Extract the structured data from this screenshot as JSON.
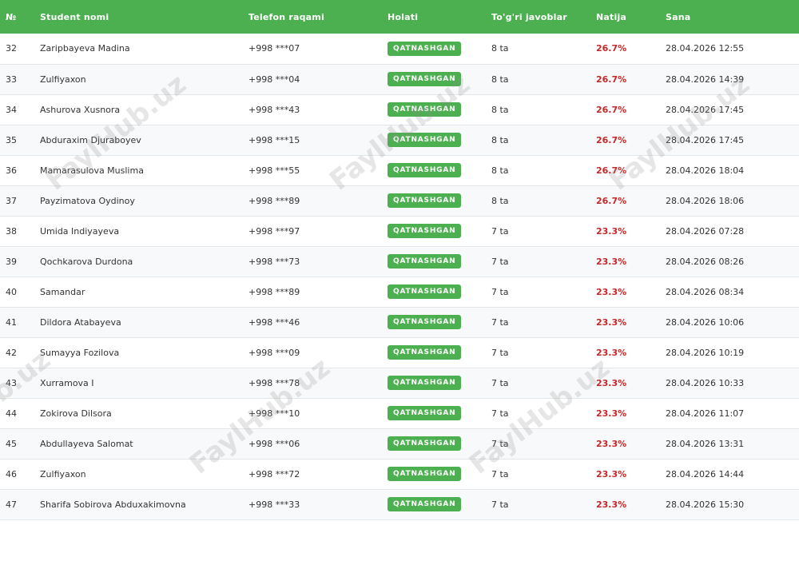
{
  "watermark_text": "FaylHub.uz",
  "headers": {
    "num": "№",
    "name": "Student nomi",
    "phone": "Telefon raqami",
    "status": "Holati",
    "correct": "To'g'ri javoblar",
    "result": "Natija",
    "date": "Sana"
  },
  "rows": [
    {
      "num": "32",
      "name": "Zaripbayeva Madina",
      "phone": "+998 ***07",
      "status": "QATNASHGAN",
      "correct": "8 ta",
      "result": "26.7%",
      "date": "28.04.2026 12:55"
    },
    {
      "num": "33",
      "name": "Zulfiyaxon",
      "phone": "+998 ***04",
      "status": "QATNASHGAN",
      "correct": "8 ta",
      "result": "26.7%",
      "date": "28.04.2026 14:39"
    },
    {
      "num": "34",
      "name": "Ashurova Xusnora",
      "phone": "+998 ***43",
      "status": "QATNASHGAN",
      "correct": "8 ta",
      "result": "26.7%",
      "date": "28.04.2026 17:45"
    },
    {
      "num": "35",
      "name": "Abduraxim Djuraboyev",
      "phone": "+998 ***15",
      "status": "QATNASHGAN",
      "correct": "8 ta",
      "result": "26.7%",
      "date": "28.04.2026 17:45"
    },
    {
      "num": "36",
      "name": "Mamarasulova Muslima",
      "phone": "+998 ***55",
      "status": "QATNASHGAN",
      "correct": "8 ta",
      "result": "26.7%",
      "date": "28.04.2026 18:04"
    },
    {
      "num": "37",
      "name": "Payzimatova Oydinoy",
      "phone": "+998 ***89",
      "status": "QATNASHGAN",
      "correct": "8 ta",
      "result": "26.7%",
      "date": "28.04.2026 18:06"
    },
    {
      "num": "38",
      "name": "Umida Indiyayeva",
      "phone": "+998 ***97",
      "status": "QATNASHGAN",
      "correct": "7 ta",
      "result": "23.3%",
      "date": "28.04.2026 07:28"
    },
    {
      "num": "39",
      "name": "Qochkarova Durdona",
      "phone": "+998 ***73",
      "status": "QATNASHGAN",
      "correct": "7 ta",
      "result": "23.3%",
      "date": "28.04.2026 08:26"
    },
    {
      "num": "40",
      "name": "Samandar",
      "phone": "+998 ***89",
      "status": "QATNASHGAN",
      "correct": "7 ta",
      "result": "23.3%",
      "date": "28.04.2026 08:34"
    },
    {
      "num": "41",
      "name": "Dildora Atabayeva",
      "phone": "+998 ***46",
      "status": "QATNASHGAN",
      "correct": "7 ta",
      "result": "23.3%",
      "date": "28.04.2026 10:06"
    },
    {
      "num": "42",
      "name": "Sumayya Fozilova",
      "phone": "+998 ***09",
      "status": "QATNASHGAN",
      "correct": "7 ta",
      "result": "23.3%",
      "date": "28.04.2026 10:19"
    },
    {
      "num": "43",
      "name": "Xurramova I",
      "phone": "+998 ***78",
      "status": "QATNASHGAN",
      "correct": "7 ta",
      "result": "23.3%",
      "date": "28.04.2026 10:33"
    },
    {
      "num": "44",
      "name": "Zokirova Dilsora",
      "phone": "+998 ***10",
      "status": "QATNASHGAN",
      "correct": "7 ta",
      "result": "23.3%",
      "date": "28.04.2026 11:07"
    },
    {
      "num": "45",
      "name": "Abdullayeva Salomat",
      "phone": "+998 ***06",
      "status": "QATNASHGAN",
      "correct": "7 ta",
      "result": "23.3%",
      "date": "28.04.2026 13:31"
    },
    {
      "num": "46",
      "name": "Zulfiyaxon",
      "phone": "+998 ***72",
      "status": "QATNASHGAN",
      "correct": "7 ta",
      "result": "23.3%",
      "date": "28.04.2026 14:44"
    },
    {
      "num": "47",
      "name": "Sharifa Sobirova Abduxakimovna",
      "phone": "+998 ***33",
      "status": "QATNASHGAN",
      "correct": "7 ta",
      "result": "23.3%",
      "date": "28.04.2026 15:30"
    }
  ]
}
